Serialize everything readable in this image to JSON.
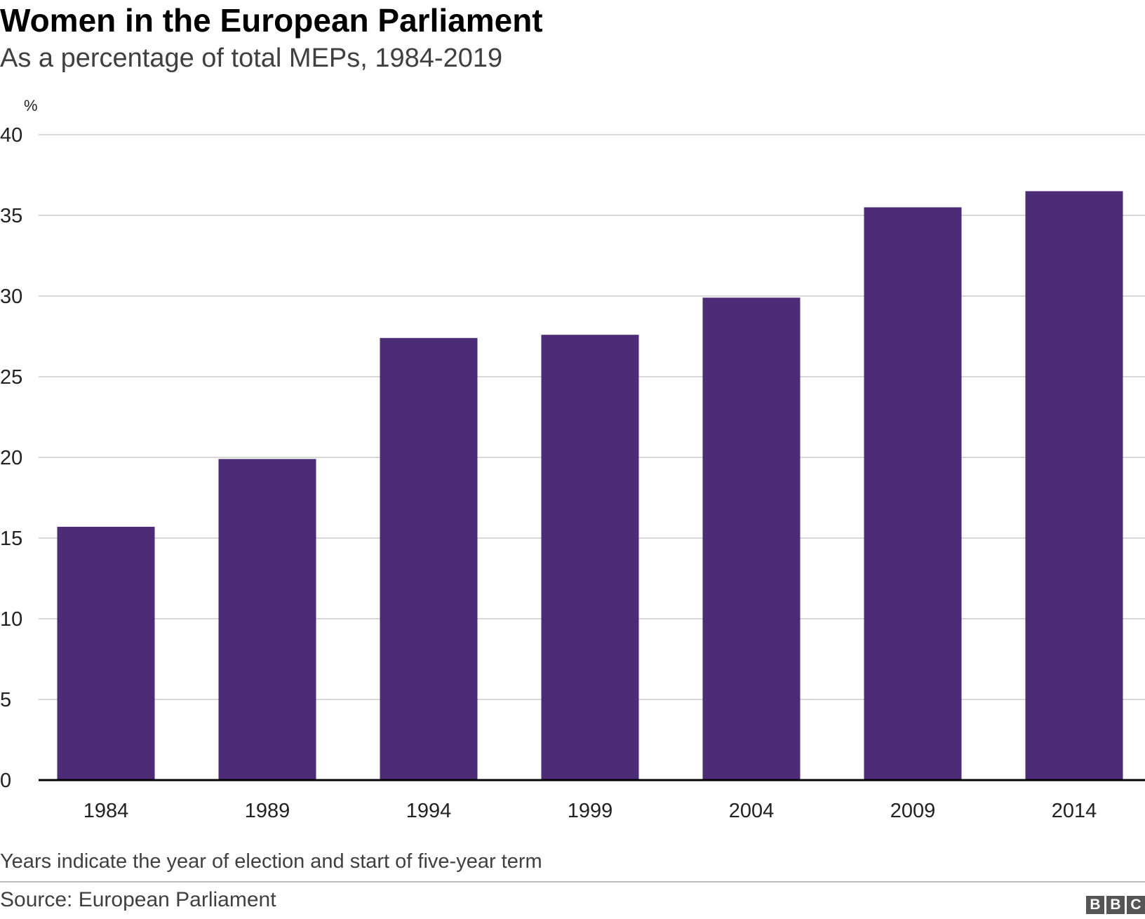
{
  "header": {
    "title": "Women in the European Parliament",
    "subtitle": "As a percentage of total MEPs, 1984-2019"
  },
  "footer": {
    "note": "Years indicate the year of election and start of five-year term",
    "source": "Source: European Parliament",
    "logo_letters": [
      "B",
      "B",
      "C"
    ]
  },
  "colors": {
    "bar": "#4d2c77",
    "grid": "#cccccc",
    "baseline": "#000000"
  },
  "chart_data": {
    "type": "bar",
    "title": "Women in the European Parliament",
    "subtitle": "As a percentage of total MEPs, 1984-2019",
    "xlabel": "",
    "ylabel": "%",
    "categories": [
      "1984",
      "1989",
      "1994",
      "1999",
      "2004",
      "2009",
      "2014"
    ],
    "values": [
      15.7,
      19.9,
      27.4,
      27.6,
      29.9,
      35.5,
      36.5
    ],
    "ylim": [
      0,
      40
    ],
    "yticks": [
      0,
      5,
      10,
      15,
      20,
      25,
      30,
      35,
      40
    ],
    "grid": true,
    "legend": "none"
  }
}
